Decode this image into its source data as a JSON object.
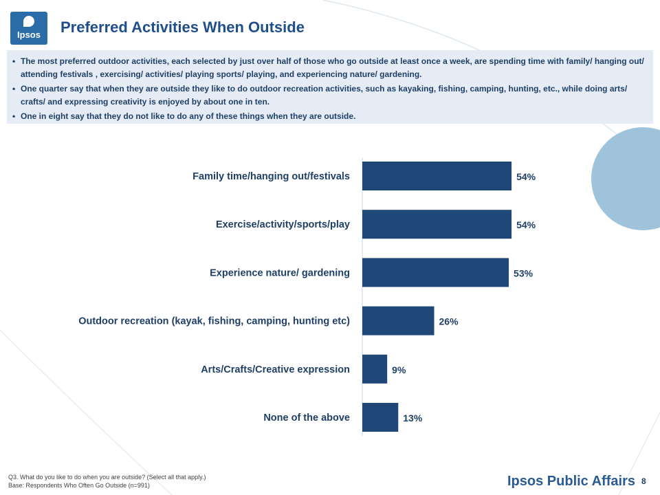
{
  "header": {
    "logo_text": "Ipsos",
    "title": "Preferred Activities When Outside"
  },
  "summary": {
    "bullets": [
      "The most preferred outdoor activities, each selected by just over half of those who go outside at least once a week, are spending time with family/ hanging out/ attending festivals , exercising/ activities/ playing sports/ playing, and experiencing nature/ gardening.",
      "One quarter say that when they are outside they like to do outdoor recreation activities, such as kayaking, fishing, camping, hunting, etc., while doing arts/ crafts/ and expressing creativity is  enjoyed by about one in ten.",
      "One in eight say that they do not like to do any of these things when they are outside."
    ]
  },
  "chart_data": {
    "type": "bar",
    "orientation": "horizontal",
    "categories": [
      "Family time/hanging out/festivals",
      "Exercise/activity/sports/play",
      "Experience nature/ gardening",
      "Outdoor recreation (kayak, fishing, camping, hunting etc)",
      "Arts/Crafts/Creative expression",
      "None of the above"
    ],
    "values": [
      54,
      54,
      53,
      26,
      9,
      13
    ],
    "value_labels": [
      "54%",
      "54%",
      "53%",
      "26%",
      "9%",
      "13%"
    ],
    "xlim": [
      0,
      100
    ],
    "grid": false,
    "legend": "none",
    "bar_color": "#1f4778"
  },
  "footer": {
    "question": "Q3. What do you like to do when you are outside? (Select all that apply.)",
    "base": "Base: Respondents Who Often Go Outside (n=991)"
  },
  "brand": "Ipsos Public Affairs",
  "page_number": "8",
  "colors": {
    "title": "#1f4e8c",
    "summary_bg": "#e5ecf5",
    "bar": "#1f4778",
    "accent_circle": "#9ec3db"
  }
}
